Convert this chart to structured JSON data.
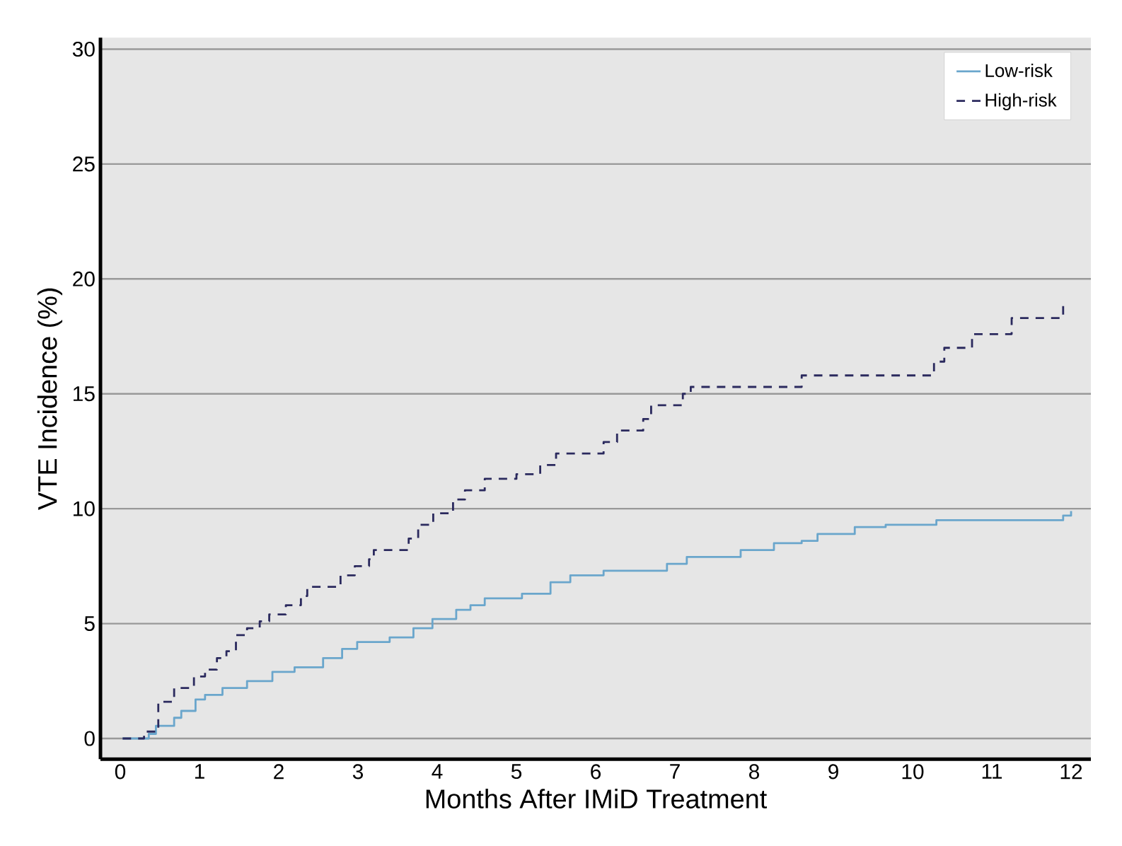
{
  "chart_data": {
    "type": "step",
    "xlabel": "Months After IMiD Treatment",
    "ylabel": "VTE Incidence (%)",
    "xlim": [
      -0.25,
      12.25
    ],
    "ylim": [
      -0.9,
      30.5
    ],
    "xticks": [
      0,
      1,
      2,
      3,
      4,
      5,
      6,
      7,
      8,
      9,
      10,
      11,
      12
    ],
    "yticks": [
      0,
      5,
      10,
      15,
      20,
      25,
      30
    ],
    "grid": "y",
    "legend": "top right",
    "series": [
      {
        "name": "Low-risk",
        "color": "#6aa6cc",
        "line_style": "solid",
        "x": [
          0.03,
          0.36,
          0.45,
          0.68,
          0.77,
          0.95,
          1.07,
          1.29,
          1.6,
          1.92,
          2.2,
          2.56,
          2.8,
          2.99,
          3.4,
          3.7,
          3.94,
          4.24,
          4.42,
          4.6,
          5.07,
          5.43,
          5.68,
          6.1,
          6.9,
          7.15,
          7.83,
          8.25,
          8.6,
          8.8,
          9.27,
          9.66,
          10.3,
          11.9,
          12.0
        ],
        "values": [
          0,
          0.2,
          0.55,
          0.9,
          1.2,
          1.7,
          1.9,
          2.2,
          2.5,
          2.9,
          3.1,
          3.5,
          3.9,
          4.2,
          4.4,
          4.8,
          5.2,
          5.6,
          5.8,
          6.1,
          6.3,
          6.8,
          7.1,
          7.3,
          7.6,
          7.9,
          8.2,
          8.5,
          8.6,
          8.9,
          9.2,
          9.3,
          9.5,
          9.7,
          9.9
        ]
      },
      {
        "name": "High-risk",
        "color": "#2b2a5e",
        "line_style": "dashed",
        "x": [
          0.03,
          0.3,
          0.48,
          0.68,
          0.93,
          1.07,
          1.22,
          1.34,
          1.46,
          1.6,
          1.76,
          1.88,
          2.09,
          2.28,
          2.36,
          2.78,
          2.96,
          3.14,
          3.2,
          3.64,
          3.76,
          3.95,
          4.2,
          4.35,
          4.6,
          5.0,
          5.3,
          5.5,
          6.1,
          6.27,
          6.6,
          6.7,
          7.1,
          7.2,
          8.6,
          10.27,
          10.4,
          10.75,
          11.25,
          11.9
        ],
        "values": [
          0,
          0.3,
          1.6,
          2.2,
          2.7,
          3.0,
          3.5,
          3.8,
          4.5,
          4.8,
          5.1,
          5.4,
          5.8,
          6.2,
          6.6,
          7.1,
          7.5,
          7.8,
          8.2,
          8.7,
          9.3,
          9.8,
          10.4,
          10.8,
          11.3,
          11.5,
          11.9,
          12.4,
          12.9,
          13.4,
          13.9,
          14.5,
          15.0,
          15.3,
          15.8,
          16.4,
          17.0,
          17.6,
          18.3,
          18.9
        ]
      }
    ]
  }
}
